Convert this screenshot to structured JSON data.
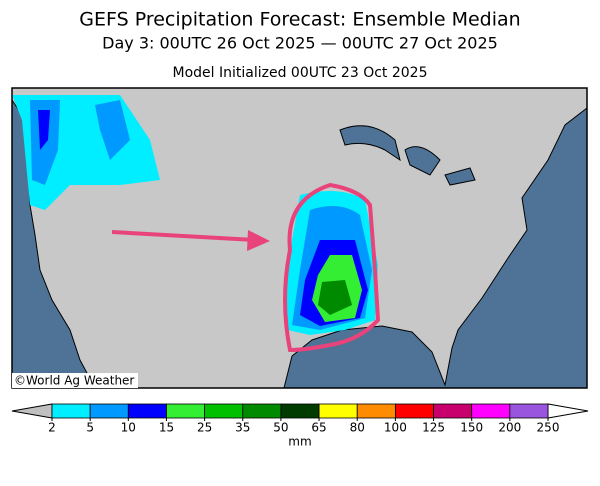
{
  "header": {
    "title": "GEFS Precipitation Forecast: Ensemble Median",
    "subtitle": "Day 3: 00UTC 26 Oct 2025 — 00UTC 27 Oct 2025",
    "initialized": "Model Initialized 00UTC 23 Oct 2025"
  },
  "map": {
    "credit": "©World Ag Weather"
  },
  "colorbar": {
    "ticks": [
      2,
      5,
      10,
      15,
      25,
      35,
      50,
      65,
      80,
      100,
      125,
      150,
      200,
      250
    ],
    "colors": [
      "#00eeff",
      "#0099ff",
      "#0000ff",
      "#33ee33",
      "#00c000",
      "#008a00",
      "#003c00",
      "#ffff00",
      "#ff8c00",
      "#ff0000",
      "#c8006e",
      "#ff00ff",
      "#9955dd"
    ],
    "under_color": "#c0c0c0",
    "over_color": "#ffffff",
    "unit": "mm"
  }
}
